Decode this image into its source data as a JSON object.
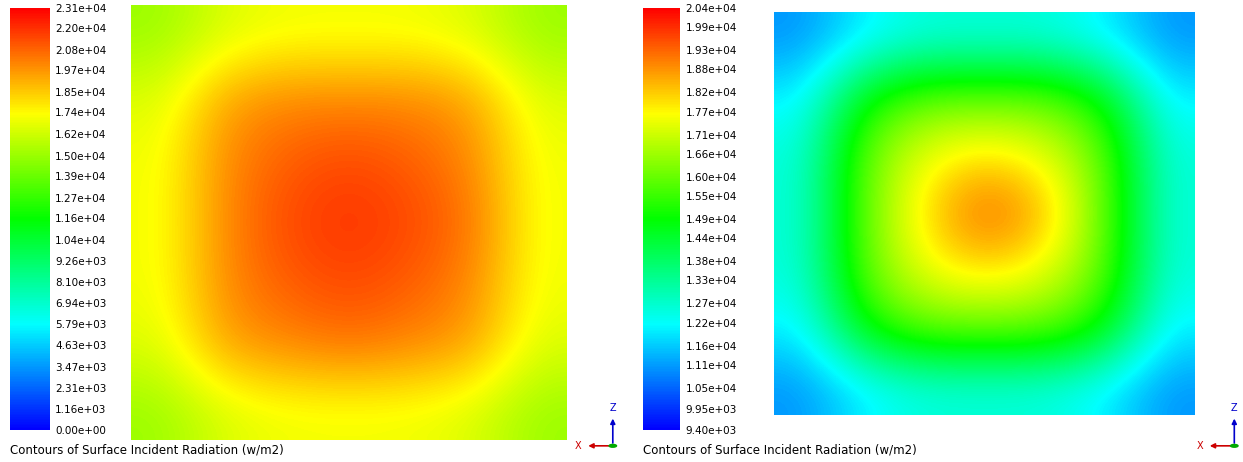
{
  "chart_data": [
    {
      "type": "heatmap",
      "title": "Contours of Surface Incident Radiation (w/m2)",
      "tick_labels": false,
      "annotations": [
        "Z",
        "X"
      ],
      "cells": [
        [
          15000,
          16500,
          17000,
          17000,
          17000,
          16500,
          15000
        ],
        [
          16500,
          19500,
          20000,
          20000,
          20000,
          19500,
          16500
        ],
        [
          17000,
          20000,
          21000,
          21500,
          21000,
          20000,
          17000
        ],
        [
          17000,
          20000,
          21500,
          22000,
          21500,
          20500,
          17000
        ],
        [
          17000,
          20000,
          21000,
          21500,
          21000,
          20000,
          17000
        ],
        [
          16500,
          19500,
          20000,
          20500,
          20000,
          19500,
          16500
        ],
        [
          15000,
          16500,
          17000,
          17000,
          17000,
          16500,
          15000
        ]
      ],
      "colorbar_range": [
        0,
        23100
      ],
      "colorbar_ticks": [
        {
          "value": 0,
          "label": "0.00e+00"
        },
        {
          "value": 1160,
          "label": "1.16e+03"
        },
        {
          "value": 2310,
          "label": "2.31e+03"
        },
        {
          "value": 3470,
          "label": "3.47e+03"
        },
        {
          "value": 4630,
          "label": "4.63e+03"
        },
        {
          "value": 5790,
          "label": "5.79e+03"
        },
        {
          "value": 6940,
          "label": "6.94e+03"
        },
        {
          "value": 8100,
          "label": "8.10e+03"
        },
        {
          "value": 9260,
          "label": "9.26e+03"
        },
        {
          "value": 10400,
          "label": "1.04e+04"
        },
        {
          "value": 11600,
          "label": "1.16e+04"
        },
        {
          "value": 12700,
          "label": "1.27e+04"
        },
        {
          "value": 13900,
          "label": "1.39e+04"
        },
        {
          "value": 15000,
          "label": "1.50e+04"
        },
        {
          "value": 16200,
          "label": "1.62e+04"
        },
        {
          "value": 17400,
          "label": "1.74e+04"
        },
        {
          "value": 18500,
          "label": "1.85e+04"
        },
        {
          "value": 19700,
          "label": "1.97e+04"
        },
        {
          "value": 20800,
          "label": "2.08e+04"
        },
        {
          "value": 22000,
          "label": "2.20e+04"
        },
        {
          "value": 23100,
          "label": "2.31e+04"
        }
      ]
    },
    {
      "type": "heatmap",
      "title": "Contours of Surface Incident Radiation (w/m2)",
      "tick_labels": false,
      "annotations": [
        "Z",
        "X"
      ],
      "cells": [
        [
          11000,
          12000,
          12500,
          12500,
          12500,
          12000,
          11000
        ],
        [
          12000,
          15000,
          16000,
          16000,
          16000,
          15000,
          12000
        ],
        [
          12500,
          16000,
          17500,
          18000,
          17500,
          16000,
          12500
        ],
        [
          12500,
          16000,
          18000,
          19500,
          18500,
          16000,
          12500
        ],
        [
          12500,
          16000,
          17500,
          18000,
          17500,
          16000,
          12500
        ],
        [
          12000,
          15000,
          16000,
          16000,
          16000,
          15000,
          12000
        ],
        [
          11000,
          12000,
          12500,
          12500,
          12500,
          12000,
          11000
        ]
      ],
      "colorbar_range": [
        9400,
        20400
      ],
      "colorbar_ticks": [
        {
          "value": 9400,
          "label": "9.40e+03"
        },
        {
          "value": 9950,
          "label": "9.95e+03"
        },
        {
          "value": 10500,
          "label": "1.05e+04"
        },
        {
          "value": 11100,
          "label": "1.11e+04"
        },
        {
          "value": 11600,
          "label": "1.16e+04"
        },
        {
          "value": 12200,
          "label": "1.22e+04"
        },
        {
          "value": 12700,
          "label": "1.27e+04"
        },
        {
          "value": 13300,
          "label": "1.33e+04"
        },
        {
          "value": 13800,
          "label": "1.38e+04"
        },
        {
          "value": 14400,
          "label": "1.44e+04"
        },
        {
          "value": 14900,
          "label": "1.49e+04"
        },
        {
          "value": 15500,
          "label": "1.55e+04"
        },
        {
          "value": 16000,
          "label": "1.60e+04"
        },
        {
          "value": 16600,
          "label": "1.66e+04"
        },
        {
          "value": 17100,
          "label": "1.71e+04"
        },
        {
          "value": 17700,
          "label": "1.77e+04"
        },
        {
          "value": 18200,
          "label": "1.82e+04"
        },
        {
          "value": 18800,
          "label": "1.88e+04"
        },
        {
          "value": 19300,
          "label": "1.93e+04"
        },
        {
          "value": 19900,
          "label": "1.99e+04"
        },
        {
          "value": 20400,
          "label": "2.04e+04"
        }
      ]
    }
  ]
}
